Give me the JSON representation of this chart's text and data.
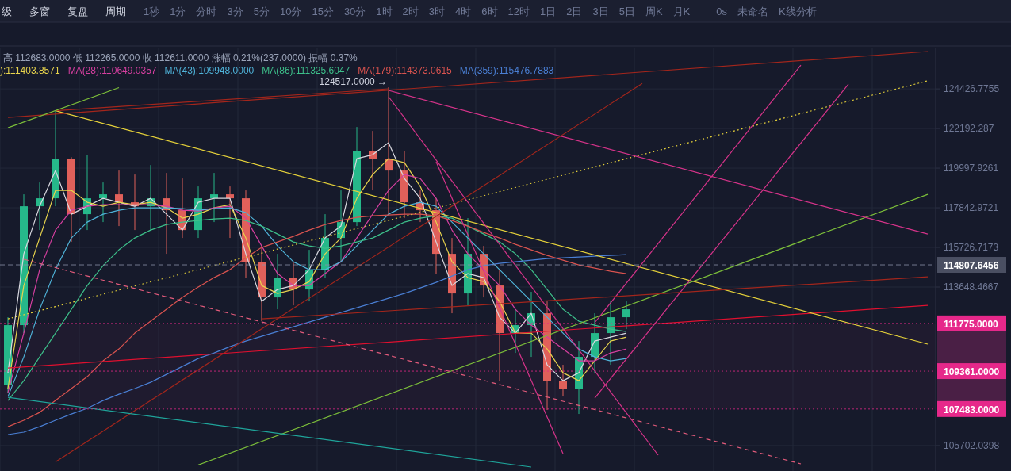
{
  "chart_data": {
    "type": "candlestick",
    "log": "y",
    "grid": true,
    "legend": "top left",
    "categories": [
      null,
      null,
      null,
      null,
      null,
      null,
      null,
      null,
      null,
      null,
      null,
      null,
      null,
      null,
      null,
      null,
      null,
      null,
      null,
      null,
      null,
      null,
      null,
      null,
      null,
      null,
      null,
      null,
      null,
      null,
      null,
      null,
      null,
      null,
      null,
      null,
      null,
      null,
      null,
      null,
      null,
      null,
      null,
      null,
      null,
      null,
      null,
      null,
      null,
      null,
      null,
      null,
      null,
      null,
      null,
      null,
      null,
      null,
      null
    ],
    "ylim": [
      104480,
      126800
    ],
    "yticks": [
      124426.7755,
      122192.287,
      119997.9261,
      117842.9721,
      115726.7173,
      113648.4667,
      105702.0398
    ],
    "ohlc": [
      [
        108690,
        112091,
        108296,
        111685
      ],
      [
        111685,
        118570,
        111281,
        117926
      ],
      [
        117926,
        119216,
        116651,
        118355
      ],
      [
        118355,
        123169,
        117926,
        120519
      ],
      [
        120519,
        120600,
        116018,
        117500
      ],
      [
        117500,
        120738,
        116651,
        118355
      ],
      [
        118355,
        119216,
        117074,
        118570
      ],
      [
        118570,
        119866,
        116862,
        118140
      ],
      [
        118140,
        119649,
        116651,
        117926
      ],
      [
        117926,
        120170,
        116651,
        118355
      ],
      [
        118355,
        119736,
        115389,
        117713
      ],
      [
        117713,
        119432,
        116229,
        116651
      ],
      [
        116651,
        119000,
        116229,
        118355
      ],
      [
        118355,
        119736,
        117074,
        118570
      ],
      [
        118570,
        119000,
        116229,
        118355
      ],
      [
        118355,
        118785,
        114141,
        114971
      ],
      [
        114971,
        115808,
        111888,
        113111
      ],
      [
        113111,
        115389,
        112498,
        114141
      ],
      [
        114141,
        114971,
        112702,
        113522
      ],
      [
        113522,
        115598,
        112906,
        114555
      ],
      [
        114555,
        117500,
        114141,
        116229
      ],
      [
        116229,
        118785,
        114971,
        117074
      ],
      [
        117074,
        122279,
        116862,
        120957
      ],
      [
        120957,
        122058,
        118785,
        120519
      ],
      [
        120519,
        124517,
        117500,
        119866
      ],
      [
        119866,
        120957,
        117287,
        118140
      ],
      [
        118140,
        118785,
        117074,
        117713
      ],
      [
        117713,
        118355,
        114348,
        115389
      ],
      [
        115389,
        116229,
        112294,
        113316
      ],
      [
        113316,
        117287,
        112702,
        115389
      ],
      [
        115389,
        115808,
        113111,
        113728
      ],
      [
        113728,
        114555,
        108887,
        111281
      ],
      [
        111281,
        112498,
        110277,
        111685
      ],
      [
        111685,
        113400,
        110077,
        112294
      ],
      [
        112294,
        112906,
        107436,
        108887
      ],
      [
        108887,
        109679,
        108100,
        108493
      ],
      [
        108493,
        110878,
        107241,
        110077
      ],
      [
        110077,
        112294,
        109282,
        111281
      ],
      [
        111281,
        112906,
        109679,
        112091
      ],
      [
        112091,
        112906,
        111483,
        112498
      ],
      null,
      null,
      null,
      null,
      null,
      null,
      null,
      null,
      null,
      null,
      null,
      null,
      null,
      null,
      null,
      null,
      null,
      null,
      null
    ],
    "colors": [
      "#26b88a",
      "#26b88a",
      "#26b88a",
      "#26b88a",
      "#e0605a",
      "#26b88a",
      "#26b88a",
      "#e0605a",
      "#e0605a",
      "#26b88a",
      "#e0605a",
      "#e0605a",
      "#26b88a",
      "#26b88a",
      "#e0605a",
      "#e0605a",
      "#e0605a",
      "#26b88a",
      "#e0605a",
      "#26b88a",
      "#26b88a",
      "#26b88a",
      "#26b88a",
      "#e0605a",
      "#e0605a",
      "#e0605a",
      "#e0605a",
      "#e0605a",
      "#e0605a",
      "#26b88a",
      "#e0605a",
      "#e0605a",
      "#26b88a",
      "#26b88a",
      "#e0605a",
      "#e0605a",
      "#26b88a",
      "#26b88a",
      "#26b88a",
      "#26b88a",
      null,
      null,
      null,
      null,
      null,
      null,
      null,
      null,
      null,
      null,
      null,
      null,
      null,
      null,
      null,
      null,
      null,
      null,
      null
    ],
    "series": [
      {
        "type": "line",
        "color": "#d9d9e0",
        "values": [
          109282,
          115389,
          117926,
          119866,
          117500,
          117926,
          118355,
          118140,
          117926,
          118355,
          117500,
          116651,
          118140,
          118355,
          118355,
          115389,
          112906,
          113522,
          113728,
          114555,
          116229,
          116862,
          120519,
          120738,
          121396,
          119432,
          118355,
          116018,
          113728,
          114348,
          114141,
          112091,
          111281,
          112294,
          109679,
          108887,
          109282,
          110878,
          111079,
          111281,
          null,
          null,
          null,
          null,
          null,
          null,
          null,
          null,
          null,
          null,
          null,
          null,
          null,
          null,
          null,
          null,
          null,
          null,
          null
        ]
      },
      {
        "type": "line",
        "name": "):111403.8571",
        "color": "#e8d44d",
        "values": [
          108493,
          113728,
          116229,
          118785,
          118785,
          118140,
          117926,
          118140,
          118013,
          118140,
          117841,
          117287,
          117500,
          117841,
          118013,
          116229,
          113728,
          113316,
          113522,
          113934,
          115389,
          116229,
          118355,
          119649,
          120519,
          120300,
          119000,
          117074,
          114971,
          114141,
          113934,
          112906,
          111281,
          111281,
          110477,
          109282,
          108887,
          109878,
          110878,
          111079,
          null,
          null,
          null,
          null,
          null,
          null,
          null,
          null,
          null,
          null,
          null,
          null,
          null,
          null,
          null,
          null,
          null,
          null,
          null
        ]
      },
      {
        "type": "line",
        "name": "MA(28):110649.0357",
        "color": "#d63fa0",
        "values": [
          108296,
          111281,
          114555,
          116651,
          117713,
          117926,
          118013,
          118013,
          118013,
          118013,
          117926,
          117713,
          117670,
          117841,
          117926,
          117287,
          115808,
          114348,
          113728,
          113728,
          114348,
          114971,
          116229,
          117500,
          118785,
          119649,
          119432,
          118355,
          116651,
          115389,
          114555,
          113728,
          112498,
          111685,
          111079,
          110477,
          109878,
          109878,
          110277,
          110477,
          null,
          null,
          null,
          null,
          null,
          null,
          null,
          null,
          null,
          null,
          null,
          null,
          null,
          null,
          null,
          null,
          null,
          null,
          null
        ]
      },
      {
        "type": "line",
        "name": "MA(43):109948.0000",
        "color": "#4fb3d9",
        "values": [
          108100,
          110077,
          112498,
          114555,
          116229,
          117074,
          117500,
          117713,
          117841,
          117841,
          117841,
          117798,
          117713,
          117798,
          117841,
          117585,
          116862,
          115808,
          114971,
          114555,
          114555,
          114971,
          115808,
          116651,
          117500,
          117926,
          118140,
          117926,
          117074,
          116229,
          115389,
          114555,
          113728,
          112906,
          112091,
          111281,
          110477,
          110077,
          109878,
          109997,
          null,
          null,
          null,
          null,
          null,
          null,
          null,
          null,
          null,
          null,
          null,
          null,
          null,
          null,
          null,
          null,
          null,
          null,
          null
        ]
      },
      {
        "type": "line",
        "name": "MA(86):111325.6047",
        "color": "#3dbf8a",
        "values": [
          107904,
          108887,
          110077,
          111281,
          112498,
          113728,
          114763,
          115598,
          116229,
          116651,
          116947,
          117074,
          117159,
          117245,
          117287,
          117159,
          116862,
          116440,
          116018,
          115808,
          115682,
          115808,
          116018,
          116229,
          116651,
          117074,
          117287,
          117415,
          117287,
          116862,
          116440,
          116018,
          115389,
          114555,
          113522,
          112498,
          111888,
          111685,
          111483,
          111362,
          null,
          null,
          null,
          null,
          null,
          null,
          null,
          null,
          null,
          null,
          null,
          null,
          null,
          null,
          null,
          null,
          null,
          null,
          null
        ]
      },
      {
        "type": "line",
        "name": "MA(179):114373.0615",
        "color": "#d9534f",
        "values": [
          106621,
          106931,
          107319,
          107904,
          108493,
          109084,
          109878,
          110477,
          111281,
          111888,
          112498,
          113111,
          113645,
          114141,
          114555,
          115180,
          115724,
          116018,
          116313,
          116651,
          116947,
          117159,
          117330,
          117415,
          117457,
          117500,
          117500,
          117415,
          117159,
          116862,
          116524,
          116229,
          115892,
          115598,
          115305,
          115054,
          114804,
          114638,
          114472,
          114348,
          null,
          null,
          null,
          null,
          null,
          null,
          null,
          null,
          null,
          null,
          null,
          null,
          null,
          null,
          null,
          null,
          null,
          null,
          null
        ]
      },
      {
        "type": "line",
        "name": "MA(359):115476.7883",
        "color": "#4a7fd4",
        "values": [
          106236,
          106351,
          106621,
          106931,
          107241,
          107514,
          107904,
          108217,
          108493,
          108808,
          109203,
          109600,
          109997,
          110277,
          110597,
          110878,
          111120,
          111362,
          111604,
          111848,
          112091,
          112335,
          112580,
          112824,
          113070,
          113316,
          113604,
          113893,
          114224,
          114555,
          114763,
          114888,
          114971,
          115054,
          115138,
          115180,
          115222,
          115263,
          115305,
          115347,
          null,
          null,
          null,
          null,
          null,
          null,
          null,
          null,
          null,
          null,
          null,
          null,
          null,
          null,
          null,
          null,
          null,
          null,
          null
        ]
      },
      {
        "type": "line",
        "color": "#e0102f",
        "values": [
          109520,
          null,
          null,
          null,
          null,
          null,
          null,
          null,
          null,
          null,
          null,
          null,
          null,
          null,
          null,
          null,
          null,
          null,
          null,
          null,
          null,
          null,
          null,
          null,
          null,
          null,
          null,
          null,
          null,
          null,
          null,
          null,
          null,
          null,
          null,
          null,
          null,
          null,
          null,
          null,
          null,
          null,
          null,
          null,
          null,
          null,
          null,
          null,
          null,
          null,
          null,
          null,
          null,
          null,
          null,
          null,
          null,
          null,
          112700
        ]
      },
      {
        "type": "line",
        "color": "#e6d23a",
        "values": [
          null,
          null,
          null,
          123190,
          null,
          null,
          null,
          null,
          null,
          null,
          null,
          null,
          null,
          null,
          null,
          null,
          null,
          null,
          null,
          null,
          null,
          null,
          null,
          null,
          null,
          null,
          null,
          null,
          null,
          null,
          null,
          null,
          null,
          null,
          null,
          null,
          null,
          null,
          null,
          null,
          null,
          null,
          null,
          null,
          null,
          null,
          null,
          null,
          null,
          null,
          null,
          null,
          null,
          null,
          null,
          null,
          null,
          null,
          110720
        ]
      },
      {
        "type": "line",
        "color": "#e6d23a",
        "line_style": "dotted",
        "values": [
          112010,
          null,
          null,
          null,
          null,
          null,
          null,
          null,
          null,
          null,
          null,
          null,
          null,
          null,
          null,
          null,
          null,
          null,
          null,
          null,
          null,
          null,
          null,
          null,
          null,
          null,
          null,
          null,
          null,
          null,
          null,
          null,
          null,
          null,
          null,
          null,
          null,
          null,
          null,
          null,
          null,
          null,
          null,
          null,
          null,
          null,
          null,
          null,
          null,
          null,
          null,
          null,
          null,
          null,
          null,
          null,
          null,
          null,
          124890
        ]
      },
      {
        "type": "line",
        "color": "#e05a7a",
        "line_style": "dashed",
        "values": [
          null,
          115100,
          null,
          null,
          null,
          null,
          null,
          null,
          null,
          null,
          null,
          null,
          null,
          null,
          null,
          null,
          null,
          null,
          null,
          null,
          null,
          null,
          null,
          null,
          null,
          null,
          null,
          null,
          null,
          null,
          null,
          null,
          null,
          null,
          null,
          null,
          null,
          null,
          null,
          null,
          null,
          null,
          null,
          null,
          null,
          null,
          null,
          null,
          null,
          null,
          104820,
          null,
          null,
          null,
          null,
          null,
          null,
          null,
          null
        ]
      },
      {
        "type": "line",
        "color": "#a3261c",
        "values": [
          122810,
          null,
          null,
          null,
          null,
          null,
          null,
          null,
          null,
          null,
          null,
          null,
          null,
          null,
          null,
          null,
          null,
          null,
          null,
          null,
          null,
          null,
          null,
          null,
          null,
          null,
          null,
          null,
          null,
          null,
          null,
          null,
          null,
          null,
          null,
          null,
          null,
          null,
          null,
          null,
          null,
          null,
          null,
          null,
          null,
          null,
          null,
          null,
          null,
          null,
          null,
          null,
          null,
          null,
          null,
          null,
          null,
          null,
          126570
        ]
      },
      {
        "type": "line",
        "color": "#a3261c",
        "values": [
          null,
          null,
          null,
          123190,
          null,
          null,
          null,
          null,
          null,
          null,
          null,
          null,
          null,
          null,
          null,
          null,
          null,
          null,
          null,
          null,
          null,
          null,
          null,
          null,
          124430,
          null,
          null,
          null,
          null,
          null,
          null,
          null,
          null,
          null,
          null,
          null,
          null,
          null,
          null,
          null,
          null,
          null,
          null,
          null,
          null,
          null,
          null,
          null,
          null,
          null,
          null,
          null,
          null,
          null,
          null,
          null,
          null,
          null,
          null
        ]
      },
      {
        "type": "line",
        "color": "#a3261c",
        "values": [
          null,
          null,
          null,
          104920,
          null,
          null,
          null,
          null,
          null,
          null,
          null,
          null,
          null,
          null,
          null,
          null,
          null,
          null,
          null,
          null,
          null,
          null,
          null,
          null,
          null,
          null,
          null,
          null,
          null,
          null,
          null,
          null,
          null,
          null,
          null,
          null,
          null,
          null,
          null,
          null,
          124740,
          null,
          null,
          null,
          null,
          null,
          null,
          null,
          null,
          null,
          null,
          null,
          null,
          null,
          null,
          null,
          null,
          null,
          null
        ]
      },
      {
        "type": "line",
        "color": "#7cbf3a",
        "values": [
          122235,
          null,
          null,
          null,
          null,
          null,
          null,
          124500,
          null,
          null,
          null,
          null,
          null,
          null,
          null,
          null,
          null,
          null,
          null,
          null,
          null,
          null,
          null,
          null,
          null,
          null,
          null,
          null,
          null,
          null,
          null,
          null,
          null,
          null,
          null,
          null,
          null,
          null,
          null,
          null,
          null,
          null,
          null,
          null,
          null,
          null,
          null,
          null,
          null,
          null,
          null,
          null,
          null,
          null,
          null,
          null,
          null,
          null,
          null
        ]
      },
      {
        "type": "line",
        "color": "#7cbf3a",
        "values": [
          null,
          null,
          null,
          null,
          null,
          null,
          null,
          null,
          null,
          null,
          null,
          null,
          104770,
          null,
          null,
          null,
          null,
          null,
          null,
          null,
          null,
          null,
          null,
          null,
          null,
          null,
          null,
          null,
          null,
          null,
          null,
          null,
          null,
          null,
          null,
          null,
          null,
          null,
          null,
          null,
          null,
          null,
          null,
          null,
          null,
          null,
          null,
          null,
          null,
          null,
          null,
          null,
          null,
          null,
          null,
          null,
          null,
          null,
          118570
        ]
      },
      {
        "type": "line",
        "color": "#1fa59b",
        "values": [
          108060,
          null,
          null,
          null,
          null,
          null,
          null,
          null,
          null,
          null,
          null,
          null,
          null,
          null,
          null,
          null,
          null,
          null,
          null,
          null,
          null,
          null,
          null,
          null,
          null,
          null,
          null,
          null,
          null,
          null,
          null,
          null,
          null,
          104670,
          null,
          null,
          null,
          null,
          null,
          null,
          null,
          null,
          null,
          null,
          null,
          null,
          null,
          null,
          null,
          null,
          null,
          null,
          null,
          null,
          null,
          null,
          null,
          null,
          null
        ]
      },
      {
        "type": "line",
        "color": "#d6338a",
        "values": [
          null,
          null,
          null,
          null,
          null,
          null,
          null,
          null,
          null,
          null,
          null,
          null,
          null,
          null,
          null,
          null,
          null,
          null,
          null,
          null,
          null,
          null,
          null,
          null,
          124340,
          null,
          null,
          null,
          null,
          null,
          null,
          null,
          null,
          null,
          null,
          null,
          null,
          null,
          null,
          null,
          null,
          null,
          null,
          null,
          null,
          null,
          null,
          null,
          null,
          null,
          null,
          null,
          null,
          null,
          null,
          null,
          null,
          null,
          116440
        ]
      },
      {
        "type": "line",
        "color": "#d6338a",
        "values": [
          null,
          null,
          null,
          null,
          null,
          null,
          null,
          null,
          null,
          null,
          null,
          null,
          null,
          null,
          null,
          null,
          null,
          null,
          null,
          null,
          null,
          null,
          null,
          null,
          123980,
          null,
          null,
          null,
          null,
          null,
          null,
          null,
          null,
          null,
          null,
          null,
          null,
          null,
          null,
          null,
          null,
          105240,
          null,
          null,
          null,
          null,
          null,
          null,
          null,
          null,
          null,
          null,
          null,
          null,
          null,
          null,
          null,
          null,
          null
        ]
      },
      {
        "type": "line",
        "color": "#d6338a",
        "values": [
          null,
          null,
          null,
          null,
          null,
          null,
          null,
          null,
          null,
          null,
          null,
          null,
          null,
          null,
          null,
          null,
          null,
          null,
          null,
          null,
          null,
          null,
          null,
          null,
          null,
          null,
          null,
          120350,
          null,
          null,
          null,
          null,
          null,
          null,
          null,
          105320,
          null,
          null,
          null,
          null,
          null,
          null,
          null,
          null,
          null,
          null,
          null,
          null,
          null,
          null,
          null,
          null,
          null,
          null,
          null,
          null,
          null,
          null,
          null
        ]
      },
      {
        "type": "line",
        "color": "#d6338a",
        "values": [
          null,
          null,
          null,
          null,
          null,
          null,
          null,
          null,
          null,
          null,
          null,
          null,
          null,
          null,
          null,
          null,
          null,
          null,
          null,
          null,
          null,
          null,
          null,
          null,
          null,
          null,
          null,
          null,
          null,
          null,
          null,
          null,
          null,
          null,
          null,
          null,
          null,
          111810,
          null,
          null,
          null,
          null,
          null,
          null,
          null,
          null,
          null,
          null,
          null,
          null,
          125790,
          null,
          null,
          null,
          null,
          null,
          null,
          null,
          null
        ]
      },
      {
        "type": "line",
        "color": "#d6338a",
        "values": [
          null,
          null,
          null,
          null,
          null,
          null,
          null,
          null,
          null,
          null,
          null,
          null,
          null,
          null,
          null,
          null,
          null,
          null,
          null,
          null,
          null,
          null,
          null,
          null,
          null,
          null,
          null,
          null,
          null,
          null,
          null,
          null,
          null,
          null,
          null,
          null,
          null,
          108020,
          null,
          null,
          null,
          null,
          null,
          null,
          null,
          null,
          null,
          null,
          null,
          null,
          null,
          null,
          null,
          124700,
          null,
          null,
          null,
          null,
          null
        ]
      },
      {
        "type": "line",
        "color": "#a3261c",
        "values": [
          null,
          null,
          null,
          null,
          null,
          null,
          null,
          null,
          null,
          null,
          null,
          null,
          null,
          null,
          null,
          null,
          112010,
          null,
          null,
          null,
          null,
          null,
          null,
          null,
          null,
          null,
          null,
          null,
          null,
          null,
          null,
          null,
          null,
          null,
          null,
          null,
          null,
          null,
          null,
          null,
          null,
          null,
          null,
          null,
          null,
          null,
          null,
          null,
          null,
          null,
          null,
          null,
          null,
          null,
          null,
          null,
          null,
          null,
          114180
        ]
      }
    ],
    "bands": [
      {
        "axis": "y",
        "from": 107483,
        "to": 111775,
        "color": "#4a1f45"
      }
    ],
    "ref_lines": [
      {
        "axis": "y",
        "value": 114807.6456,
        "label": "114807.6456",
        "color": "#8a90a6",
        "line_style": "dashed"
      },
      {
        "axis": "y",
        "value": 111775,
        "label": "111775.0000",
        "color": "#e6288a",
        "line_style": "dotted"
      },
      {
        "axis": "y",
        "value": 109361,
        "label": "109361.0000",
        "color": "#e6288a",
        "line_style": "dotted"
      },
      {
        "axis": "y",
        "value": 107483,
        "label": "107483.0000",
        "color": "#e6288a",
        "line_style": "dotted"
      }
    ],
    "annotations": [
      "级",
      "多窗",
      "复盘",
      "周期",
      "1秒",
      "1分",
      "分时",
      "3分",
      "5分",
      "10分",
      "15分",
      "30分",
      "1时",
      "2时",
      "3时",
      "4时",
      "6时",
      "12时",
      "1日",
      "2日",
      "3日",
      "5日",
      "周K",
      "月K",
      "0s",
      "未命名",
      "K线分析",
      "高 112683.0000 低 112265.0000 收 112611.0000 涨幅 0.21%(237.0000) 振幅 0.37%",
      {
        "text": "124517.0000 →",
        "y": 124517
      }
    ]
  }
}
